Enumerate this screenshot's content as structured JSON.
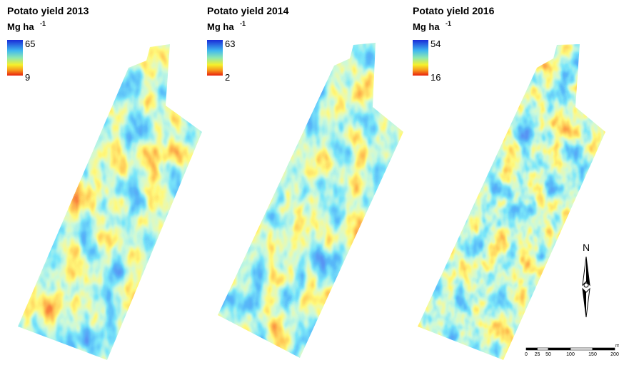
{
  "maps": [
    {
      "title": "Potato yield 2013",
      "unit": "Mg ha",
      "unit_exp": "-1",
      "legend_max": "65",
      "legend_min": "9"
    },
    {
      "title": "Potato yield 2014",
      "unit": "Mg ha",
      "unit_exp": "-1",
      "legend_max": "63",
      "legend_min": "2"
    },
    {
      "title": "Potato yield 2016",
      "unit": "Mg ha",
      "unit_exp": "-1",
      "legend_max": "54",
      "legend_min": "16"
    }
  ],
  "north_arrow": "N",
  "scale_bar": {
    "labels": [
      "0",
      "25",
      "50",
      "100",
      "150",
      "200"
    ],
    "unit": "m"
  }
}
